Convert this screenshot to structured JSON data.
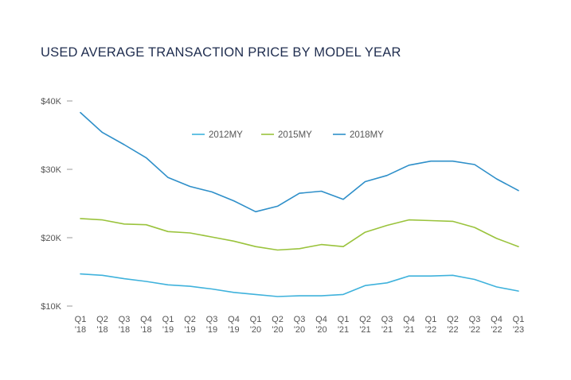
{
  "chart_data": {
    "type": "line",
    "title": "USED AVERAGE TRANSACTION PRICE BY MODEL YEAR",
    "xlabel": "",
    "ylabel": "",
    "categories": [
      [
        "Q1",
        "'18"
      ],
      [
        "Q2",
        "'18"
      ],
      [
        "Q3",
        "'18"
      ],
      [
        "Q4",
        "'18"
      ],
      [
        "Q1",
        "'19"
      ],
      [
        "Q2",
        "'19"
      ],
      [
        "Q3",
        "'19"
      ],
      [
        "Q4",
        "'19"
      ],
      [
        "Q1",
        "'20"
      ],
      [
        "Q2",
        "'20"
      ],
      [
        "Q3",
        "'20"
      ],
      [
        "Q4",
        "'20"
      ],
      [
        "Q1",
        "'21"
      ],
      [
        "Q2",
        "'21"
      ],
      [
        "Q3",
        "'21"
      ],
      [
        "Q4",
        "'21"
      ],
      [
        "Q1",
        "'22"
      ],
      [
        "Q2",
        "'22"
      ],
      [
        "Q3",
        "'22"
      ],
      [
        "Q4",
        "'22"
      ],
      [
        "Q1",
        "'23"
      ]
    ],
    "ylim": [
      10000,
      40000
    ],
    "yticks": [
      {
        "value": 10000,
        "label": "$10K"
      },
      {
        "value": 20000,
        "label": "$20K"
      },
      {
        "value": 30000,
        "label": "$30K"
      },
      {
        "value": 40000,
        "label": "$40K"
      }
    ],
    "grid": false,
    "legend_position": "top-center",
    "series": [
      {
        "name": "2012MY",
        "color": "#3fb2dc",
        "values": [
          14700,
          14500,
          14000,
          13600,
          13100,
          12900,
          12500,
          12000,
          11700,
          11400,
          11500,
          11500,
          11700,
          13000,
          13400,
          14400,
          14400,
          14500,
          13900,
          12800,
          12200
        ]
      },
      {
        "name": "2015MY",
        "color": "#9ac33c",
        "values": [
          22800,
          22600,
          22000,
          21900,
          20900,
          20700,
          20100,
          19500,
          18700,
          18200,
          18400,
          19000,
          18700,
          20800,
          21800,
          22600,
          22500,
          22400,
          21500,
          19900,
          18700
        ]
      },
      {
        "name": "2018MY",
        "color": "#2e8fc9",
        "values": [
          38300,
          35400,
          33600,
          31700,
          28800,
          27500,
          26700,
          25400,
          23800,
          24600,
          26500,
          26800,
          25600,
          28200,
          29100,
          30600,
          31200,
          31200,
          30700,
          28600,
          26900
        ]
      }
    ]
  }
}
